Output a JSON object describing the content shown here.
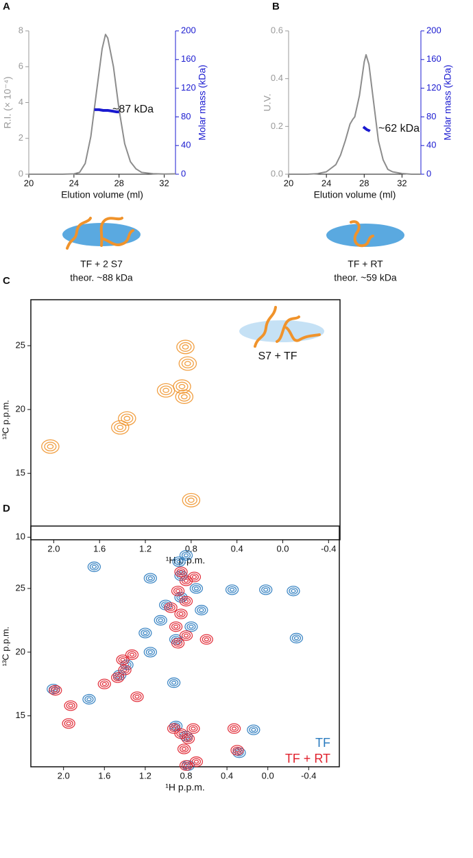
{
  "chart_data": [
    {
      "panel": "A",
      "type": "line",
      "xlabel": "Elution volume (ml)",
      "ylabel": "R.I. (× 10⁻⁴)",
      "y2label": "Molar mass (kDa)",
      "xlim": [
        20,
        33
      ],
      "xticks": [
        20,
        24,
        28,
        32
      ],
      "ylim": [
        0,
        8
      ],
      "yticks": [
        0,
        2,
        4,
        6,
        8
      ],
      "y2lim": [
        0,
        200
      ],
      "y2ticks": [
        0,
        40,
        80,
        120,
        160,
        200
      ],
      "series": [
        {
          "color": "#8c8c8c",
          "x": [
            20,
            21,
            22,
            23,
            24,
            24.5,
            25,
            25.5,
            26,
            26.5,
            26.8,
            27,
            27.5,
            28,
            28.5,
            29,
            29.5,
            30,
            31,
            32,
            33
          ],
          "values": [
            0,
            0,
            0,
            0,
            0.02,
            0.1,
            0.6,
            2.1,
            4.6,
            7.0,
            7.8,
            7.6,
            6.0,
            3.6,
            1.7,
            0.7,
            0.3,
            0.1,
            0.03,
            0.01,
            0.02
          ]
        },
        {
          "color": "#1a1ad0",
          "axis": "y2",
          "x": [
            25.8,
            26.2,
            26.6,
            27.0,
            27.4,
            27.8,
            28.0
          ],
          "values": [
            90,
            90,
            89,
            89,
            88,
            87,
            87
          ]
        }
      ],
      "annotation": "~87 kDa",
      "complex_label": [
        "TF + 2 S7",
        "theor. ~88 kDa"
      ]
    },
    {
      "panel": "B",
      "type": "line",
      "xlabel": "Elution volume (ml)",
      "ylabel": "U.V.",
      "y2label": "Molar mass (kDa)",
      "xlim": [
        20,
        34
      ],
      "xticks": [
        20,
        24,
        28,
        32
      ],
      "ylim": [
        0,
        0.6
      ],
      "yticks": [
        {
          "value": 0,
          "label": "0.0"
        },
        0.2,
        0.4,
        0.6
      ],
      "y2lim": [
        0,
        200
      ],
      "y2ticks": [
        0,
        40,
        80,
        120,
        160,
        200
      ],
      "series": [
        {
          "color": "#8c8c8c",
          "x": [
            20,
            22,
            23,
            24,
            25,
            25.5,
            26,
            26.5,
            26.8,
            27,
            27.5,
            28,
            28.2,
            28.5,
            29,
            29.5,
            30,
            30.5,
            31,
            32,
            33,
            34
          ],
          "values": [
            0,
            0,
            0.002,
            0.01,
            0.04,
            0.08,
            0.14,
            0.21,
            0.23,
            0.24,
            0.33,
            0.47,
            0.5,
            0.46,
            0.3,
            0.14,
            0.06,
            0.02,
            0.01,
            0.003,
            0,
            0
          ]
        },
        {
          "color": "#1a1ad0",
          "axis": "y2",
          "x": [
            27.9,
            28.1,
            28.3,
            28.5,
            28.6
          ],
          "values": [
            66,
            64,
            62,
            61,
            60
          ]
        }
      ],
      "annotation": "~62 kDa",
      "complex_label": [
        "TF + RT",
        "theor. ~59 kDa"
      ]
    },
    {
      "panel": "C",
      "type": "contour",
      "xlabel": "¹H p.p.m.",
      "ylabel": "¹³C p.p.m.",
      "xlim": [
        2.2,
        -0.5
      ],
      "xticks": [
        {
          "value": 2,
          "label": "2.0"
        },
        1.6,
        1.2,
        0.8,
        0.4,
        {
          "value": 0,
          "label": "0.0"
        },
        -0.4
      ],
      "ylim": [
        9.8,
        28.6
      ],
      "yticks": [
        10,
        15,
        20,
        25
      ],
      "series": [
        {
          "color": "#f0932b",
          "x": [
            2.03,
            1.42,
            1.36,
            0.8,
            0.86,
            0.88,
            0.83,
            0.85,
            1.02
          ],
          "values": [
            17.1,
            18.6,
            19.3,
            12.9,
            21.0,
            21.8,
            23.6,
            24.9,
            21.5
          ]
        }
      ],
      "annotation": "S7 + TF"
    },
    {
      "panel": "D",
      "type": "contour",
      "xlabel": "¹H p.p.m.",
      "ylabel": "¹³C p.p.m.",
      "xlim": [
        2.32,
        -0.7
      ],
      "xticks": [
        {
          "value": 2,
          "label": "2.0"
        },
        1.6,
        1.2,
        0.8,
        0.4,
        {
          "value": 0,
          "label": "0.0"
        },
        -0.4
      ],
      "ylim": [
        11,
        29.9
      ],
      "yticks": [
        15,
        20,
        25
      ],
      "series": [
        {
          "name": "TF",
          "color": "#2a7bbf",
          "x": [
            0.78,
            0.28,
            0.14,
            0.8,
            0.9,
            2.1,
            1.75,
            1.45,
            1.38,
            1.15,
            1.2,
            1.05,
            0.9,
            0.75,
            1.0,
            0.85,
            0.65,
            0.7,
            0.85,
            0.87,
            0.8,
            0.35,
            -0.28,
            -0.25,
            0.02,
            0.92,
            1.7,
            1.15
          ],
          "values": [
            11.1,
            12.1,
            13.9,
            13.4,
            14.2,
            17.1,
            16.3,
            18.2,
            19.0,
            20.0,
            21.5,
            22.5,
            21.0,
            22.0,
            23.7,
            24.3,
            23.3,
            25.0,
            26.0,
            27.1,
            27.6,
            24.9,
            21.1,
            24.8,
            24.9,
            17.6,
            26.7,
            25.8
          ]
        },
        {
          "name": "TF + RT",
          "color": "#e0202c",
          "x": [
            0.8,
            0.7,
            0.82,
            0.78,
            0.85,
            0.92,
            0.73,
            0.3,
            0.33,
            2.08,
            1.93,
            1.47,
            1.4,
            1.42,
            1.33,
            1.28,
            0.88,
            0.8,
            0.9,
            0.85,
            0.95,
            0.8,
            0.88,
            0.8,
            0.85,
            0.72,
            1.95,
            1.6,
            0.6
          ],
          "values": [
            11.1,
            11.4,
            12.4,
            13.2,
            13.6,
            14.0,
            14.0,
            12.3,
            14.0,
            17.0,
            15.8,
            18.0,
            18.6,
            19.4,
            19.8,
            16.5,
            20.7,
            21.3,
            22.0,
            23.0,
            23.5,
            24.0,
            24.8,
            25.6,
            26.3,
            25.9,
            14.4,
            17.5,
            21.0
          ]
        }
      ]
    }
  ]
}
